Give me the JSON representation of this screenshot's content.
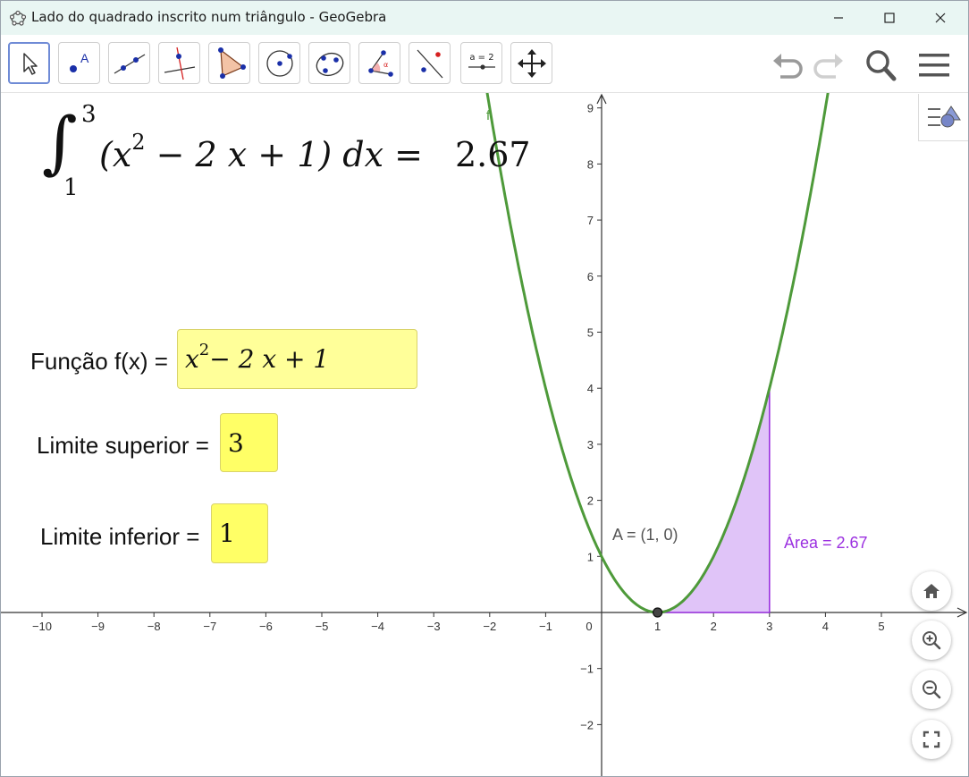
{
  "window": {
    "title": "Lado do quadrado inscrito num triângulo - GeoGebra",
    "controls": [
      "minimize",
      "maximize",
      "close"
    ]
  },
  "toolbar": {
    "tools": [
      {
        "name": "move-tool-icon"
      },
      {
        "name": "point-tool-icon"
      },
      {
        "name": "line-tool-icon"
      },
      {
        "name": "perpendicular-line-tool-icon"
      },
      {
        "name": "polygon-tool-icon"
      },
      {
        "name": "circle-center-point-tool-icon"
      },
      {
        "name": "conic-tool-icon"
      },
      {
        "name": "angle-tool-icon"
      },
      {
        "name": "reflect-tool-icon"
      },
      {
        "name": "slider-tool-icon",
        "text": "a = 2"
      },
      {
        "name": "move-graphics-view-tool-icon"
      }
    ],
    "right": [
      "undo-icon",
      "redo-icon",
      "search-icon",
      "menu-icon"
    ]
  },
  "integral": {
    "upper": "3",
    "lower": "1",
    "expression_base": "(x",
    "expression_exp": "2",
    "expression_rest": " − 2 x + 1) dx = ",
    "value": "2.67"
  },
  "inputs": {
    "function_label": "Função f(x) =",
    "function_value_base": "x",
    "function_value_exp": "2",
    "function_value_rest": " − 2 x + 1",
    "upper_label": "Limite superior =",
    "upper_value": "3",
    "lower_label": "Limite inferior =",
    "lower_value": "1"
  },
  "graph": {
    "curve_label": "f",
    "point_label": "A = (1, 0)",
    "area_label": "Área = 2.67",
    "colors": {
      "curve": "#4e9a3a",
      "area_fill": "#e0c4f8",
      "area_edge": "#9b30e0",
      "area_text": "#9b30e0",
      "point": "#444444"
    },
    "x_ticks": [
      "−10",
      "−9",
      "−8",
      "−7",
      "−6",
      "−5",
      "−4",
      "−3",
      "−2",
      "−1",
      "0",
      "1",
      "2",
      "3",
      "4",
      "5"
    ],
    "y_ticks": [
      "9",
      "8",
      "7",
      "6",
      "5",
      "4",
      "3",
      "2",
      "1",
      "−1",
      "−2"
    ]
  },
  "chart_data": {
    "type": "line",
    "function": "x^2 - 2x + 1",
    "xlim": [
      -10.7,
      6.6
    ],
    "ylim": [
      -2.9,
      9.3
    ],
    "shaded_interval": [
      1,
      3
    ],
    "point": {
      "x": 1,
      "y": 0
    }
  },
  "side_buttons": [
    "home-icon",
    "zoom-in-icon",
    "zoom-out-icon",
    "fullscreen-icon"
  ]
}
